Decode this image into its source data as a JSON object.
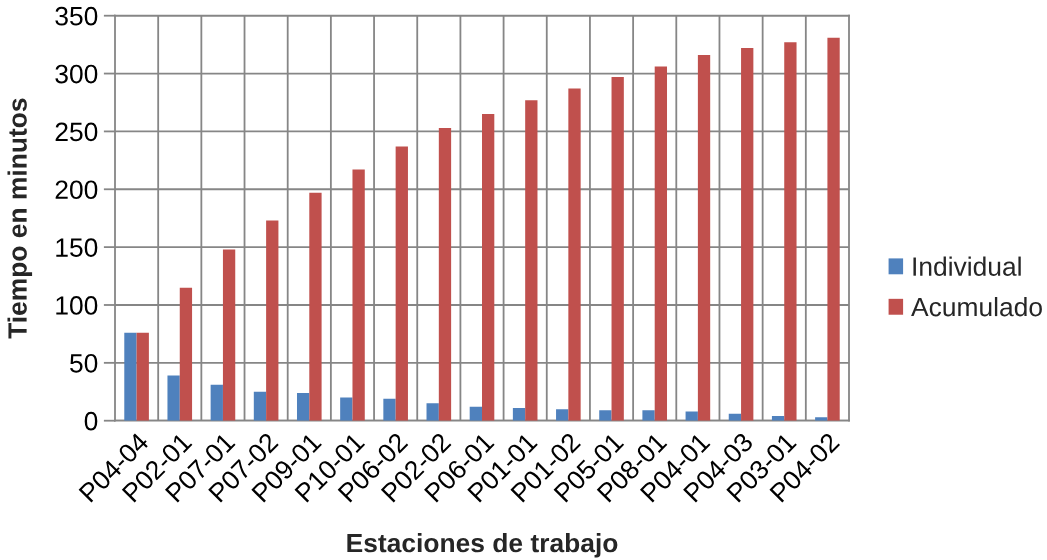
{
  "chart_data": {
    "type": "bar",
    "xlabel": "Estaciones de trabajo",
    "ylabel": "Tiempo en minutos",
    "categories": [
      "P04-04",
      "P02-01",
      "P07-01",
      "P07-02",
      "P09-01",
      "P10-01",
      "P06-02",
      "P02-02",
      "P06-01",
      "P01-01",
      "P01-02",
      "P05-01",
      "P08-01",
      "P04-01",
      "P04-03",
      "P03-01",
      "P04-02"
    ],
    "series": [
      {
        "name": "Individual",
        "color": "#4f81bd",
        "values": [
          76,
          39,
          31,
          25,
          24,
          20,
          19,
          15,
          12,
          11,
          10,
          9,
          9,
          8,
          6,
          4,
          3
        ]
      },
      {
        "name": "Acumulado",
        "color": "#c0504d",
        "values": [
          76,
          115,
          148,
          173,
          197,
          217,
          237,
          253,
          265,
          277,
          287,
          297,
          306,
          316,
          322,
          327,
          331
        ]
      }
    ],
    "ylim": [
      0,
      350
    ],
    "yticks": [
      0,
      50,
      100,
      150,
      200,
      250,
      300,
      350
    ],
    "grid": true,
    "legend": "right"
  }
}
